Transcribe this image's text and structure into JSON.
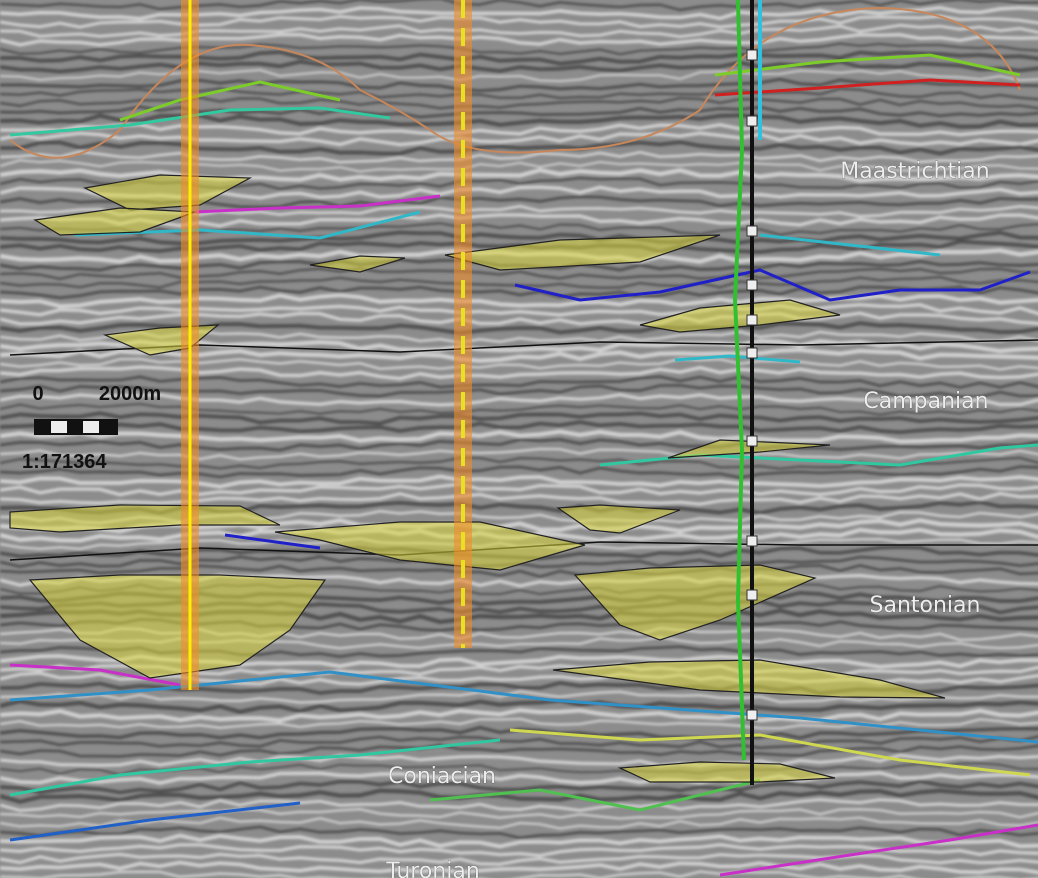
{
  "section": {
    "stages": [
      "Maastrichtian",
      "Campanian",
      "Santonian",
      "Coniacian",
      "Turonian"
    ],
    "scale_bar": {
      "start": "0",
      "end": "2000m",
      "ratio": "1:171364"
    }
  }
}
